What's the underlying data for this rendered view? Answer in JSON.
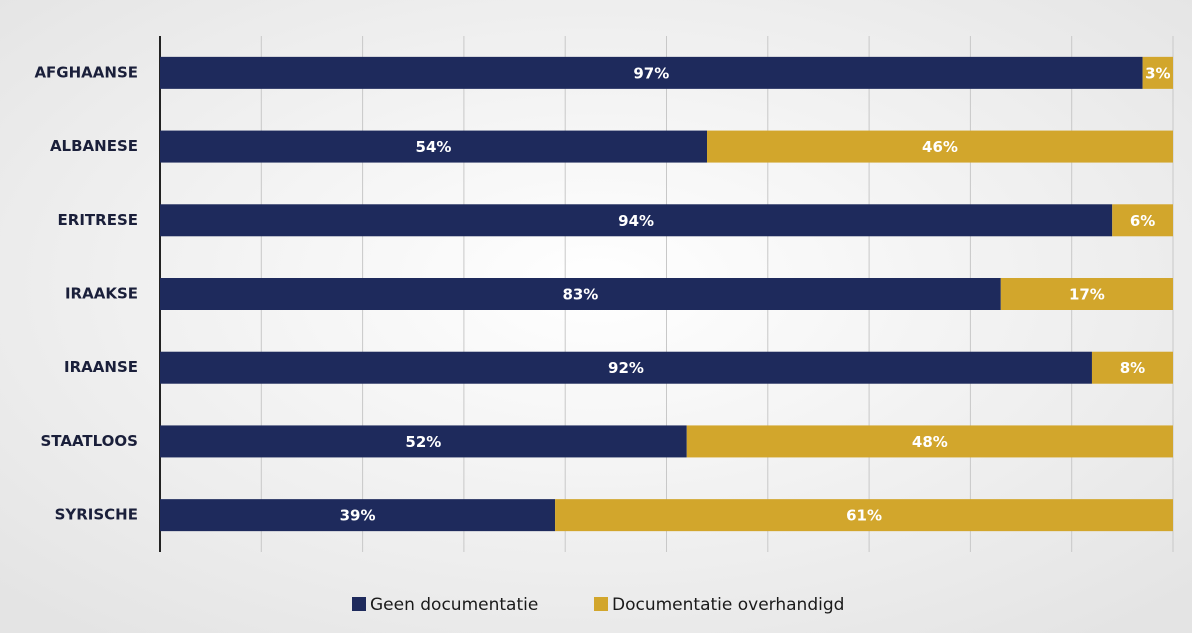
{
  "chart_data": {
    "type": "stacked-bar-horizontal",
    "categories": [
      "AFGHAANSE",
      "ALBANESE",
      "ERITRESE",
      "IRAAKSE",
      "IRAANSE",
      "STAATLOOS",
      "SYRISCHE"
    ],
    "series": [
      {
        "name": "Geen documentatie",
        "color": "#1e2a5c",
        "values": [
          97,
          54,
          94,
          83,
          92,
          52,
          39
        ],
        "value_labels": [
          "97%",
          "54%",
          "94%",
          "83%",
          "92%",
          "52%",
          "39%"
        ]
      },
      {
        "name": "Documentatie overhandigd",
        "color": "#d2a62c",
        "values": [
          3,
          46,
          6,
          17,
          8,
          48,
          61
        ],
        "value_labels": [
          "3%",
          "46%",
          "6%",
          "17%",
          "8%",
          "48%",
          "61%"
        ]
      }
    ],
    "xlim": [
      0,
      100
    ],
    "xticks": [
      0,
      10,
      20,
      30,
      40,
      50,
      60,
      70,
      80,
      90,
      100
    ],
    "grid": true
  }
}
